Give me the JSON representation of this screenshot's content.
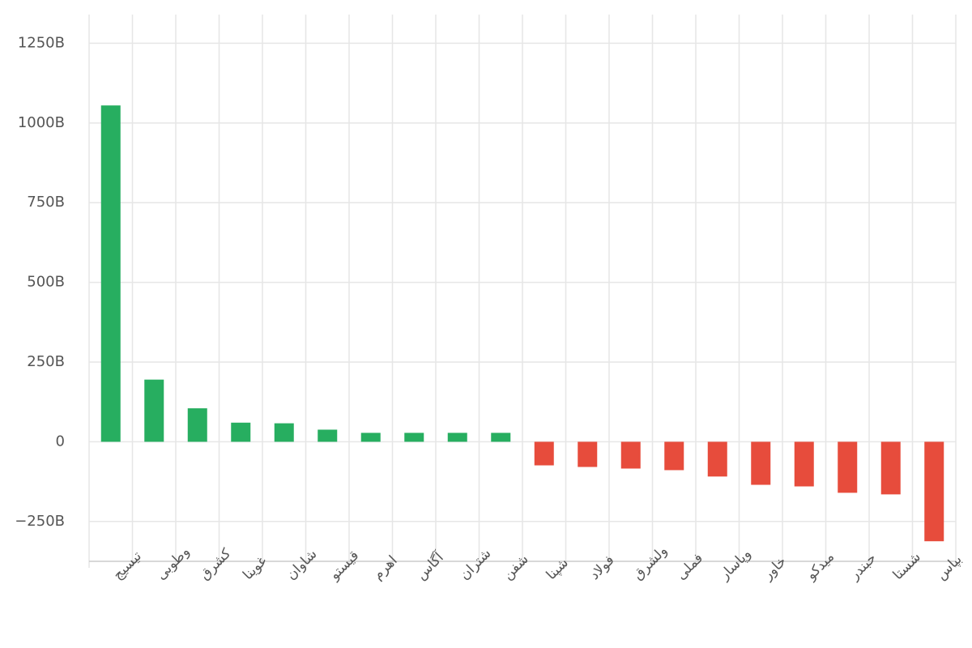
{
  "chart_data": {
    "type": "bar",
    "categories": [
      "تیسیج",
      "وطوبی",
      "کشرق",
      "غوینا",
      "شاوان",
      "قیستو",
      "اهرم",
      "آگاس",
      "شتران",
      "شفن",
      "شپنا",
      "فولاد",
      "ولشرق",
      "فملی",
      "وپاسار",
      "خاور",
      "میدکو",
      "حبندر",
      "شستا",
      "بپاس"
    ],
    "values": [
      1055,
      195,
      105,
      60,
      58,
      38,
      28,
      28,
      28,
      28,
      -74,
      -79,
      -84,
      -89,
      -109,
      -135,
      -140,
      -160,
      -165,
      -312
    ],
    "positive_color": "#27ae60",
    "negative_color": "#e74c3c",
    "ylim": [
      -375,
      1340
    ],
    "yticks": [
      {
        "value": -250,
        "label": "−250B"
      },
      0,
      {
        "value": 250,
        "label": "250B"
      },
      {
        "value": 500,
        "label": "500B"
      },
      {
        "value": 750,
        "label": "750B"
      },
      {
        "value": 1000,
        "label": "1000B"
      },
      {
        "value": 1250,
        "label": "1250B"
      }
    ],
    "grid": true
  }
}
